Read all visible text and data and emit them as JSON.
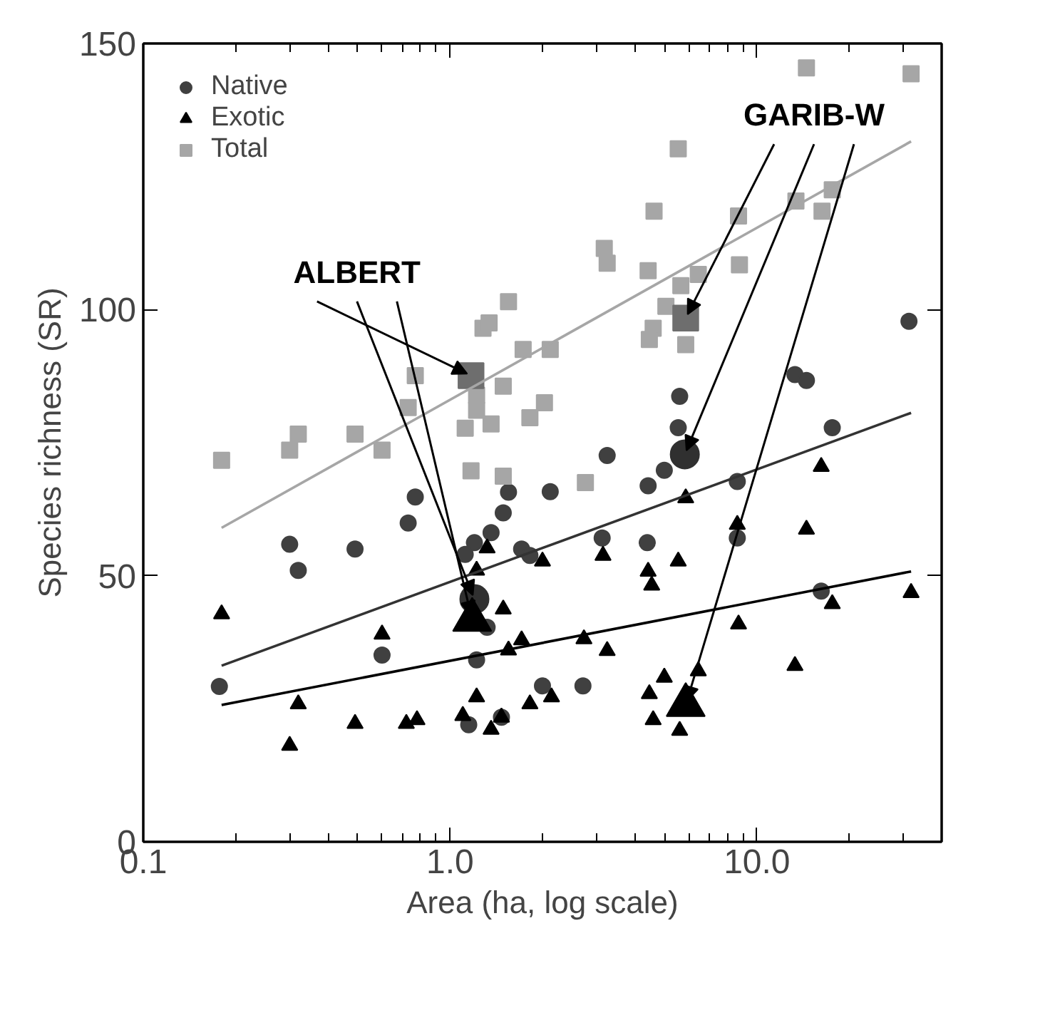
{
  "chart_data": {
    "type": "scatter",
    "xlabel": "Area (ha, log scale)",
    "ylabel": "Species richness (SR)",
    "log": "x",
    "xlim": [
      0.1,
      40
    ],
    "ylim": [
      0,
      150
    ],
    "xticks": [
      {
        "value": 0.1,
        "label": "0.1"
      },
      {
        "value": 0.2,
        "label": null
      },
      {
        "value": 0.3,
        "label": null
      },
      {
        "value": 0.4,
        "label": null
      },
      {
        "value": 0.5,
        "label": null
      },
      {
        "value": 0.6,
        "label": null
      },
      {
        "value": 0.7,
        "label": null
      },
      {
        "value": 0.8,
        "label": null
      },
      {
        "value": 0.9,
        "label": null
      },
      {
        "value": 1,
        "label": "1.0"
      },
      {
        "value": 2,
        "label": null
      },
      {
        "value": 3,
        "label": null
      },
      {
        "value": 4,
        "label": null
      },
      {
        "value": 5,
        "label": null
      },
      {
        "value": 6,
        "label": null
      },
      {
        "value": 7,
        "label": null
      },
      {
        "value": 8,
        "label": null
      },
      {
        "value": 9,
        "label": null
      },
      {
        "value": 10,
        "label": "10.0"
      },
      {
        "value": 20,
        "label": null
      },
      {
        "value": 30,
        "label": null
      }
    ],
    "yticks": [
      0,
      50,
      100,
      150
    ],
    "grid": false,
    "legend": "top left",
    "series": [
      {
        "name": "Native",
        "color": "#404040",
        "marker": "circle",
        "x": [
          0.177,
          0.3,
          0.32,
          0.49,
          0.6,
          0.73,
          0.77,
          1.15,
          1.12,
          1.2,
          1.22,
          1.36,
          1.49,
          1.55,
          1.71,
          1.32,
          3.25,
          2.12,
          4.42,
          4.99,
          1.82,
          3.13,
          4.39,
          8.63,
          8.63,
          2.0,
          2.71,
          1.47,
          16.2,
          5.6,
          5.54,
          13.3,
          14.5,
          17.6,
          31.3
        ],
        "values": [
          29.2,
          55.9,
          51.0,
          55.0,
          35.1,
          59.9,
          64.8,
          22.0,
          54.0,
          56.2,
          34.2,
          58.1,
          61.8,
          65.7,
          55.0,
          40.3,
          72.6,
          65.8,
          66.9,
          69.8,
          53.8,
          57.1,
          56.2,
          67.7,
          57.1,
          29.3,
          29.3,
          23.4,
          47.1,
          83.7,
          77.8,
          87.8,
          86.7,
          77.8,
          97.8
        ]
      },
      {
        "name": "Exotic",
        "color": "#000000",
        "marker": "triangle",
        "x": [
          0.18,
          0.32,
          0.3,
          0.49,
          0.6,
          0.72,
          0.78,
          1.1,
          1.22,
          1.22,
          1.32,
          1.36,
          1.47,
          1.49,
          1.55,
          1.71,
          1.82,
          2.14,
          2.0,
          3.15,
          2.73,
          3.25,
          4.42,
          4.54,
          5.54,
          5.86,
          4.99,
          6.44,
          4.46,
          4.59,
          5.6,
          8.63,
          8.71,
          14.5,
          16.2,
          13.3,
          17.6,
          31.8
        ],
        "values": [
          42.8,
          25.9,
          18.1,
          22.2,
          39.0,
          22.2,
          22.9,
          23.7,
          27.2,
          51.0,
          55.2,
          21.1,
          23.4,
          43.7,
          36.0,
          37.9,
          25.9,
          27.2,
          52.7,
          53.8,
          38.1,
          35.9,
          50.8,
          48.2,
          52.7,
          64.6,
          30.9,
          32.1,
          27.8,
          22.9,
          20.9,
          59.6,
          40.9,
          58.7,
          70.5,
          33.1,
          44.7,
          46.8
        ]
      },
      {
        "name": "Total",
        "color": "#a6a6a6",
        "marker": "square",
        "x": [
          0.18,
          0.3,
          0.32,
          0.49,
          0.6,
          0.73,
          0.77,
          1.17,
          1.49,
          1.12,
          1.36,
          1.22,
          1.22,
          1.49,
          1.28,
          1.34,
          1.55,
          1.73,
          2.12,
          2.03,
          1.82,
          2.76,
          3.18,
          3.25,
          4.42,
          4.62,
          5.54,
          5.65,
          5.05,
          6.44,
          4.59,
          4.46,
          5.86,
          8.71,
          8.77,
          13.4,
          14.5,
          16.3,
          17.6,
          31.8
        ],
        "values": [
          71.7,
          73.6,
          76.6,
          76.6,
          73.6,
          81.6,
          87.6,
          69.7,
          68.7,
          77.7,
          78.5,
          81.1,
          83.9,
          85.6,
          96.5,
          97.5,
          101.5,
          92.5,
          92.5,
          82.5,
          79.7,
          67.5,
          111.5,
          108.7,
          107.3,
          118.5,
          130.2,
          104.5,
          100.6,
          106.6,
          96.5,
          94.4,
          93.4,
          117.6,
          108.4,
          120.4,
          145.4,
          118.5,
          122.5,
          144.3
        ]
      },
      {
        "type": "bubble",
        "color": "#303030",
        "marker": "circle",
        "x": [
          1.2,
          5.82
        ],
        "values": [
          45.6,
          72.8
        ],
        "sizes": [
          1,
          1
        ]
      },
      {
        "type": "bubble",
        "color": "#000000",
        "marker": "triangle",
        "x": [
          1.18,
          5.86
        ],
        "values": [
          41.7,
          25.7
        ],
        "sizes": [
          1,
          1
        ]
      },
      {
        "type": "bubble",
        "color": "#6e6e6e",
        "marker": "square",
        "x": [
          1.17,
          5.86
        ],
        "values": [
          87.6,
          98.4
        ],
        "sizes": [
          1,
          1
        ]
      },
      {
        "type": "line",
        "color": "#a6a6a6",
        "x": [
          0.18,
          31.8
        ],
        "values": [
          59.0,
          131.6
        ]
      },
      {
        "type": "line",
        "color": "#333333",
        "x": [
          0.18,
          31.8
        ],
        "values": [
          33.1,
          80.6
        ]
      },
      {
        "type": "line",
        "color": "#000000",
        "x": [
          0.18,
          31.8
        ],
        "values": [
          25.7,
          50.8
        ]
      }
    ],
    "annotations": [
      {
        "text": "ALBERT",
        "x": 1.17,
        "y": 87.6
      },
      {
        "text": "GARIB-W",
        "x": 5.86,
        "y": 98.4
      }
    ]
  }
}
